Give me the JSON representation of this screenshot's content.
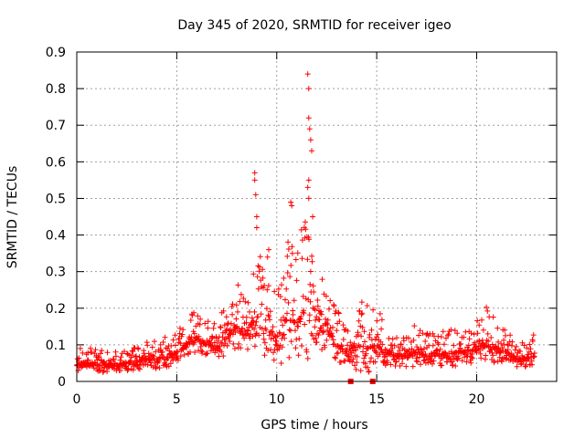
{
  "chart_data": {
    "type": "scatter",
    "title": "Day 345 of 2020, SRMTID for receiver igeo",
    "xlabel": "GPS time / hours",
    "ylabel": "SRMTID / TECUs",
    "xlim": [
      0,
      24
    ],
    "ylim": [
      0,
      0.9
    ],
    "x_ticks": [
      "0",
      "5",
      "10",
      "15",
      "20"
    ],
    "x_tick_values": [
      0,
      5,
      10,
      15,
      20
    ],
    "y_ticks": [
      "0",
      "0.1",
      "0.2",
      "0.3",
      "0.4",
      "0.5",
      "0.6",
      "0.7",
      "0.8",
      "0.9"
    ],
    "y_tick_values": [
      0,
      0.1,
      0.2,
      0.3,
      0.4,
      0.5,
      0.6,
      0.7,
      0.8,
      0.9
    ],
    "grid": true,
    "marker": "+",
    "series_color": "#ff0000",
    "series_profile": {
      "name": "SRMTID (approximate envelope: hour, central value, upper spread)",
      "x": [
        0,
        0.5,
        1,
        1.5,
        2,
        2.5,
        3,
        3.5,
        4,
        4.5,
        5,
        5.5,
        6,
        6.5,
        7,
        7.5,
        8,
        8.5,
        9,
        9.5,
        10,
        10.5,
        11,
        11.5,
        12,
        12.5,
        13,
        13.5,
        14,
        14.5,
        15,
        15.5,
        16,
        16.5,
        17,
        17.5,
        18,
        18.5,
        19,
        19.5,
        20,
        20.5,
        21,
        21.5,
        22,
        22.5,
        22.9
      ],
      "y": [
        0.05,
        0.05,
        0.045,
        0.045,
        0.05,
        0.05,
        0.055,
        0.06,
        0.06,
        0.07,
        0.08,
        0.1,
        0.12,
        0.1,
        0.09,
        0.12,
        0.15,
        0.14,
        0.18,
        0.15,
        0.12,
        0.17,
        0.16,
        0.2,
        0.14,
        0.16,
        0.1,
        0.08,
        0.1,
        0.09,
        0.1,
        0.08,
        0.07,
        0.07,
        0.08,
        0.07,
        0.08,
        0.07,
        0.08,
        0.08,
        0.09,
        0.1,
        0.09,
        0.08,
        0.06,
        0.06,
        0.07
      ],
      "spread": [
        0.04,
        0.05,
        0.04,
        0.04,
        0.04,
        0.04,
        0.05,
        0.05,
        0.05,
        0.06,
        0.07,
        0.08,
        0.08,
        0.07,
        0.07,
        0.1,
        0.12,
        0.12,
        0.18,
        0.2,
        0.16,
        0.25,
        0.22,
        0.3,
        0.12,
        0.14,
        0.1,
        0.06,
        0.14,
        0.14,
        0.13,
        0.07,
        0.06,
        0.06,
        0.08,
        0.06,
        0.07,
        0.06,
        0.08,
        0.08,
        0.08,
        0.12,
        0.08,
        0.06,
        0.05,
        0.05,
        0.06
      ]
    },
    "outliers": {
      "name": "notable high points",
      "x": [
        8.9,
        8.9,
        8.95,
        9.0,
        9.0,
        9.6,
        10.7,
        10.75,
        11.55,
        11.6,
        11.6,
        11.65,
        11.7,
        11.75,
        11.6,
        11.55,
        11.6,
        11.8
      ],
      "y": [
        0.57,
        0.55,
        0.51,
        0.45,
        0.42,
        0.36,
        0.49,
        0.48,
        0.84,
        0.8,
        0.72,
        0.69,
        0.66,
        0.63,
        0.55,
        0.53,
        0.5,
        0.45
      ]
    },
    "gap_markers": {
      "name": "square markers at zero",
      "x": [
        13.7,
        14.8
      ],
      "y": [
        0,
        0
      ]
    }
  }
}
